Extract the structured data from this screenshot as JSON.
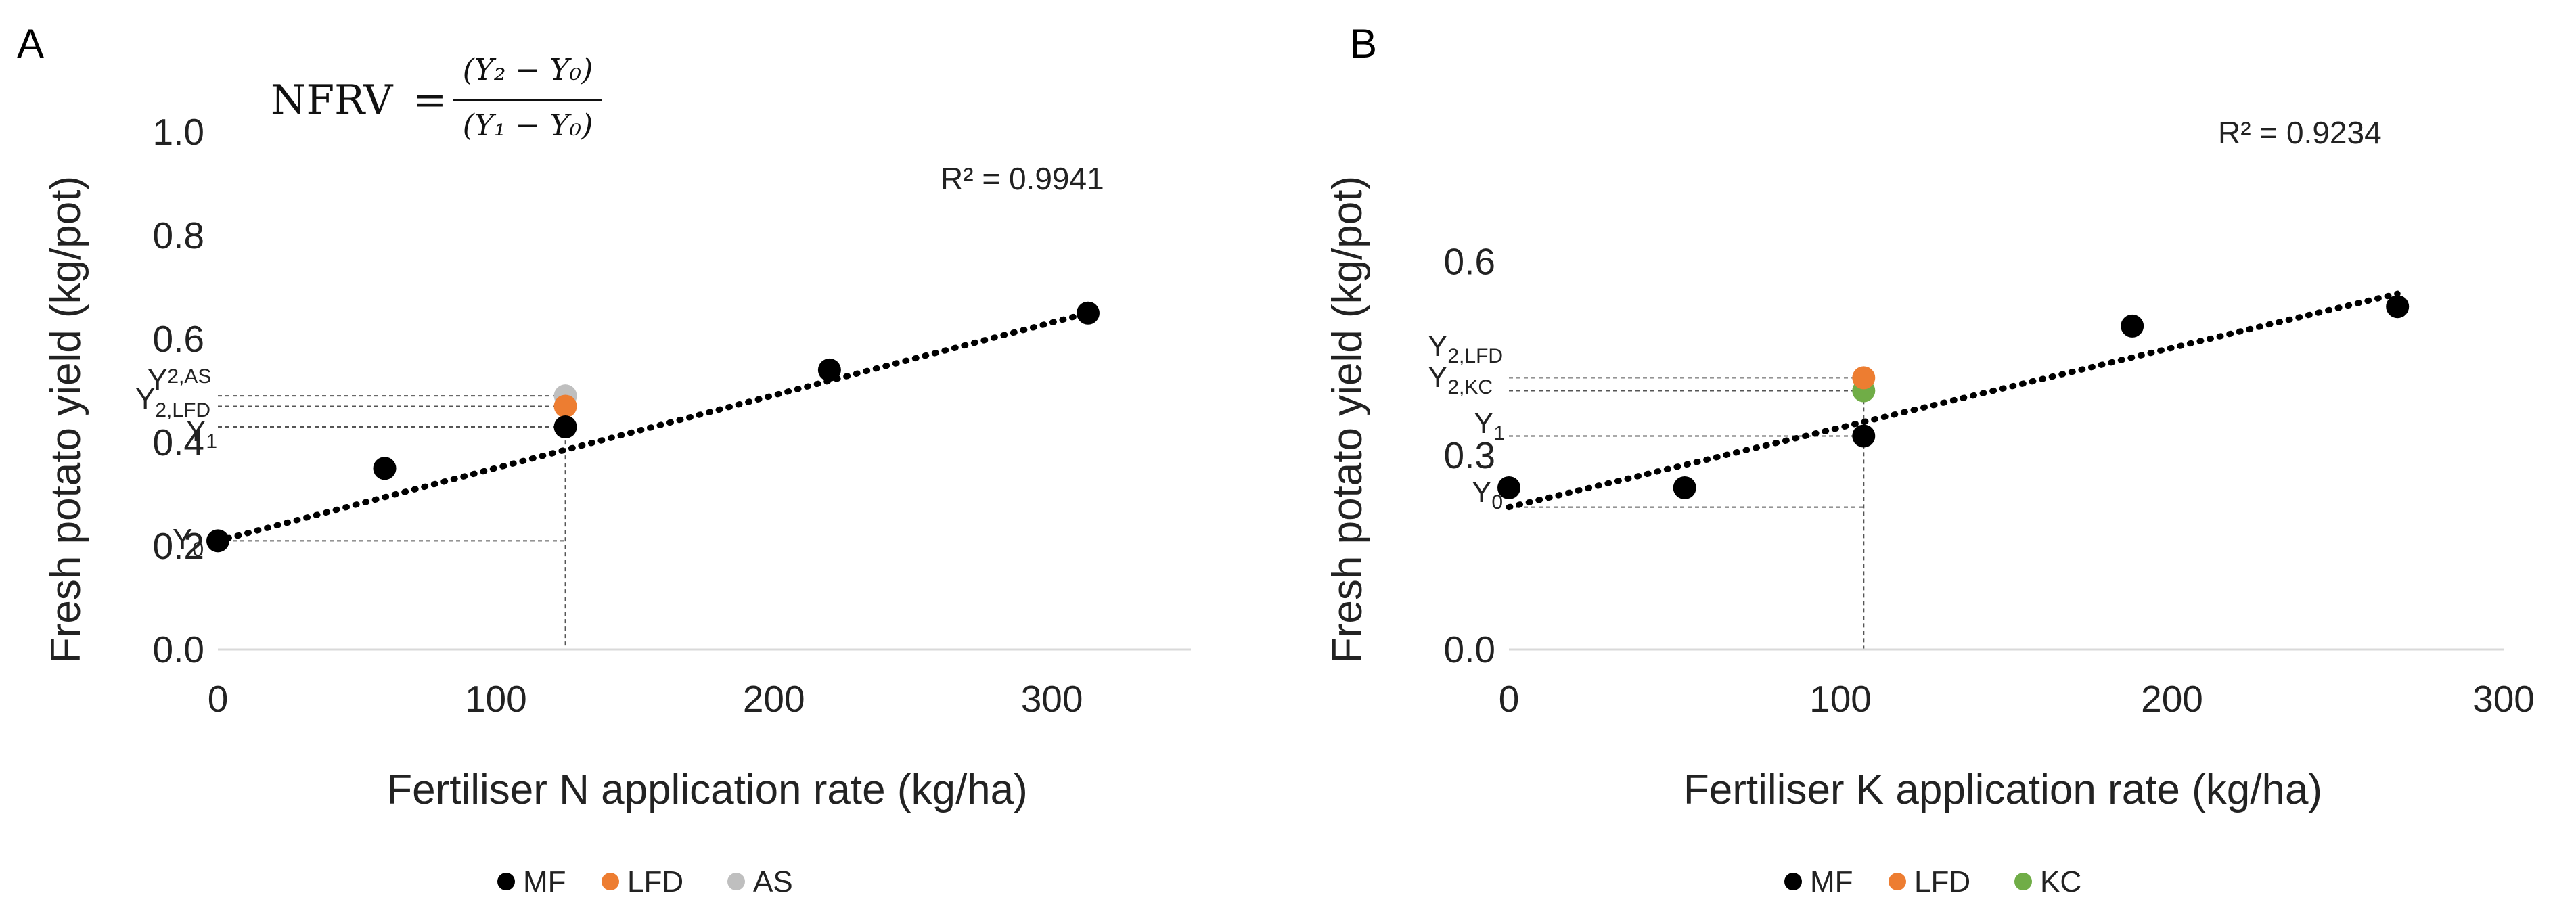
{
  "chart_data": [
    {
      "type": "scatter",
      "panel": "A",
      "xlabel": "Fertiliser N application rate (kg/ha)",
      "ylabel": "Fresh potato yield (kg/pot)",
      "xlim": [
        0,
        350
      ],
      "ylim": [
        0,
        1.0
      ],
      "xticks": [
        0,
        100,
        200,
        300
      ],
      "xtick_labels": [
        "0",
        "100",
        "200",
        "300"
      ],
      "yticks": [
        0,
        0.2,
        0.4,
        0.6,
        0.8,
        1.0
      ],
      "ytick_labels": [
        "0.0",
        "0.2",
        "0.4",
        "0.6",
        "0.8",
        "1.0"
      ],
      "grid": false,
      "r_squared_label": "R² = 0.9941",
      "formula": {
        "lhs": "NFRV",
        "numerator": "(Y₂ − Y₀)",
        "denominator": "(Y₁ − Y₀)"
      },
      "series": [
        {
          "name": "MF",
          "color": "#000000",
          "x": [
            0,
            60,
            125,
            220,
            313
          ],
          "y": [
            0.21,
            0.35,
            0.43,
            0.54,
            0.65
          ]
        },
        {
          "name": "LFD",
          "color": "#ed7d31",
          "x": [
            125
          ],
          "y": [
            0.47
          ]
        },
        {
          "name": "AS",
          "color": "#bfbfbf",
          "x": [
            125
          ],
          "y": [
            0.49
          ]
        }
      ],
      "trendline": {
        "style": "dotted",
        "x": [
          0,
          313
        ],
        "y": [
          0.21,
          0.65
        ]
      },
      "refs": {
        "x": 125,
        "y": [
          0.21,
          0.43,
          0.47,
          0.49
        ]
      },
      "annotations": [
        {
          "base": "Y",
          "sub": "2,AS"
        },
        {
          "base": "Y",
          "sub": "2,LFD"
        },
        {
          "base": "Y",
          "sub": "1"
        },
        {
          "base": "Y",
          "sub": "0"
        }
      ]
    },
    {
      "type": "scatter",
      "panel": "B",
      "xlabel": "Fertiliser K application rate (kg/ha)",
      "ylabel": "Fresh potato yield (kg/pot)",
      "xlim": [
        0,
        300
      ],
      "ylim": [
        0,
        0.8
      ],
      "xticks": [
        0,
        100,
        200,
        300
      ],
      "xtick_labels": [
        "0",
        "100",
        "200",
        "300"
      ],
      "yticks": [
        0,
        0.3,
        0.6
      ],
      "ytick_labels": [
        "0.0",
        "0.3",
        "0.6"
      ],
      "grid": false,
      "r_squared_label": "R² = 0.9234",
      "series": [
        {
          "name": "MF",
          "color": "#000000",
          "x": [
            0,
            53,
            107,
            188,
            268
          ],
          "y": [
            0.25,
            0.25,
            0.33,
            0.5,
            0.53
          ]
        },
        {
          "name": "LFD",
          "color": "#ed7d31",
          "x": [
            107
          ],
          "y": [
            0.42
          ]
        },
        {
          "name": "KC",
          "color": "#70ad47",
          "x": [
            107
          ],
          "y": [
            0.4
          ]
        }
      ],
      "trendline": {
        "style": "dotted",
        "x": [
          0,
          268
        ],
        "y": [
          0.22,
          0.55
        ]
      },
      "refs": {
        "x": 107,
        "y": [
          0.22,
          0.33,
          0.4,
          0.42
        ]
      },
      "annotations": [
        {
          "base": "Y",
          "sub": "2,LFD"
        },
        {
          "base": "Y",
          "sub": "2,KC"
        },
        {
          "base": "Y",
          "sub": "1"
        },
        {
          "base": "Y",
          "sub": "0"
        }
      ]
    }
  ]
}
